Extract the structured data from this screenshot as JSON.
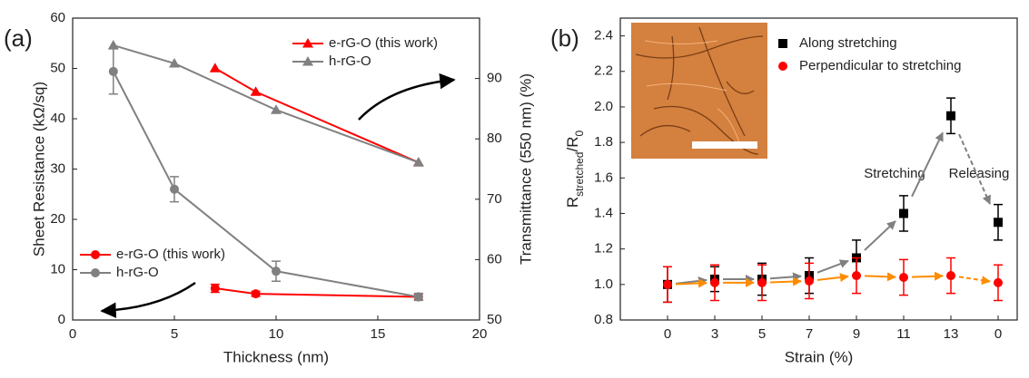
{
  "chart_data": [
    {
      "type": "line",
      "title": "(a)",
      "xlabel": "Thickness (nm)",
      "ylabel": "Sheet Resistance (kΩ/sq)",
      "y2label": "Transmittance (550 nm) (%)",
      "xlim": [
        0,
        20
      ],
      "xticks": [
        0,
        5,
        10,
        15,
        20
      ],
      "ylim": [
        0,
        60
      ],
      "yticks": [
        0,
        10,
        20,
        30,
        40,
        50,
        60
      ],
      "y2lim": [
        50,
        100
      ],
      "y2ticks": [
        50,
        60,
        70,
        80,
        90
      ],
      "series": [
        {
          "name": "e-rG-O (this work)",
          "color": "#ff0000",
          "marker": "circle",
          "x": [
            7,
            9,
            17
          ],
          "values": [
            6.3,
            5.2,
            4.6
          ],
          "errors": [
            0.8,
            0.5,
            0.6
          ]
        },
        {
          "name": "h-rG-O",
          "color": "#808080",
          "marker": "circle",
          "x": [
            2,
            5,
            10,
            17
          ],
          "values": [
            49.4,
            26,
            9.7,
            4.6
          ],
          "errors": [
            4.5,
            2.5,
            2,
            0.7
          ]
        },
        {
          "name": "e-rG-O (this work)",
          "color": "#ff0000",
          "marker": "triangle",
          "axis": "y2",
          "x": [
            7,
            9,
            17
          ],
          "values": [
            91.7,
            87.8,
            76.1
          ]
        },
        {
          "name": "h-rG-O",
          "color": "#808080",
          "marker": "triangle",
          "axis": "y2",
          "x": [
            2,
            5,
            10,
            17
          ],
          "values": [
            95.5,
            92.5,
            84.8,
            76.1
          ]
        }
      ]
    },
    {
      "type": "scatter",
      "title": "(b)",
      "xlabel": "Strain (%)",
      "ylabel": [
        "R",
        "stretched",
        "/R",
        "0"
      ],
      "categories": [
        "0",
        "3",
        "5",
        "7",
        "9",
        "11",
        "13",
        "0"
      ],
      "ylim": [
        0.8,
        2.5
      ],
      "yticks": [
        0.8,
        {
          "value": 1,
          "label": "1.0"
        },
        1.2,
        1.4,
        1.6,
        1.8,
        {
          "value": 2,
          "label": "2.0"
        },
        2.2,
        2.4
      ],
      "annotations": [
        "Stretching",
        "Releasing"
      ],
      "series": [
        {
          "name": "Along stretching",
          "color": "#000000",
          "marker": "square",
          "arrow_color": "#808080",
          "values": [
            1.0,
            1.03,
            1.03,
            1.05,
            1.15,
            1.4,
            1.95,
            1.35
          ],
          "errors": [
            0.1,
            0.07,
            0.09,
            0.1,
            0.1,
            0.1,
            0.1,
            0.1
          ]
        },
        {
          "name": "Perpendicular to stretching",
          "color": "#ff0000",
          "marker": "circle",
          "arrow_color": "#ff8c00",
          "values": [
            1.0,
            1.01,
            1.01,
            1.02,
            1.05,
            1.04,
            1.05,
            1.01
          ],
          "errors": [
            0.1,
            0.1,
            0.1,
            0.1,
            0.1,
            0.1,
            0.1,
            0.1
          ]
        }
      ]
    }
  ]
}
